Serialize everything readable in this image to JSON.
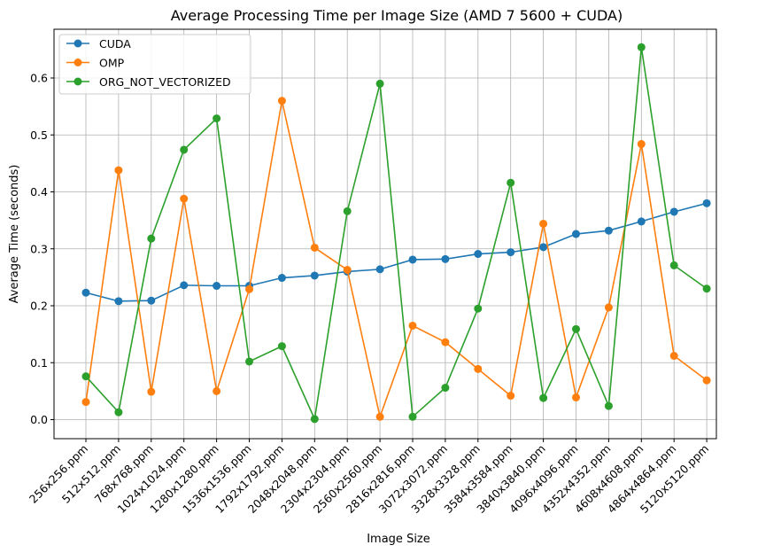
{
  "chart_data": {
    "type": "line",
    "title": "Average Processing Time per Image Size (AMD 7 5600 + CUDA)",
    "xlabel": "Image Size",
    "ylabel": "Average Time (seconds)",
    "ylim": [
      -0.033,
      0.685
    ],
    "yticks": [
      0.0,
      0.1,
      0.2,
      0.3,
      0.4,
      0.5,
      0.6
    ],
    "ytick_labels": [
      "0.0",
      "0.1",
      "0.2",
      "0.3",
      "0.4",
      "0.5",
      "0.6"
    ],
    "grid": true,
    "legend_position": "top-left",
    "categories": [
      "256x256.ppm",
      "512x512.ppm",
      "768x768.ppm",
      "1024x1024.ppm",
      "1280x1280.ppm",
      "1536x1536.ppm",
      "1792x1792.ppm",
      "2048x2048.ppm",
      "2304x2304.ppm",
      "2560x2560.ppm",
      "2816x2816.ppm",
      "3072x3072.ppm",
      "3328x3328.ppm",
      "3584x3584.ppm",
      "3840x3840.ppm",
      "4096x4096.ppm",
      "4352x4352.ppm",
      "4608x4608.ppm",
      "4864x4864.ppm",
      "5120x5120.ppm"
    ],
    "series": [
      {
        "name": "CUDA",
        "color": "#1f77b4",
        "marker": "circle",
        "values": [
          0.223,
          0.208,
          0.209,
          0.236,
          0.235,
          0.235,
          0.249,
          0.253,
          0.26,
          0.264,
          0.281,
          0.282,
          0.291,
          0.294,
          0.303,
          0.326,
          0.332,
          0.348,
          0.365,
          0.38
        ]
      },
      {
        "name": "OMP",
        "color": "#ff7f0e",
        "marker": "circle",
        "values": [
          0.031,
          0.438,
          0.049,
          0.388,
          0.05,
          0.229,
          0.56,
          0.302,
          0.263,
          0.005,
          0.165,
          0.136,
          0.089,
          0.042,
          0.344,
          0.039,
          0.197,
          0.484,
          0.112,
          0.069
        ]
      },
      {
        "name": "ORG_NOT_VECTORIZED",
        "color": "#2ca02c",
        "marker": "circle",
        "values": [
          0.076,
          0.013,
          0.318,
          0.474,
          0.529,
          0.102,
          0.129,
          0.001,
          0.366,
          0.59,
          0.005,
          0.056,
          0.195,
          0.416,
          0.038,
          0.159,
          0.024,
          0.654,
          0.271,
          0.23
        ]
      }
    ]
  }
}
